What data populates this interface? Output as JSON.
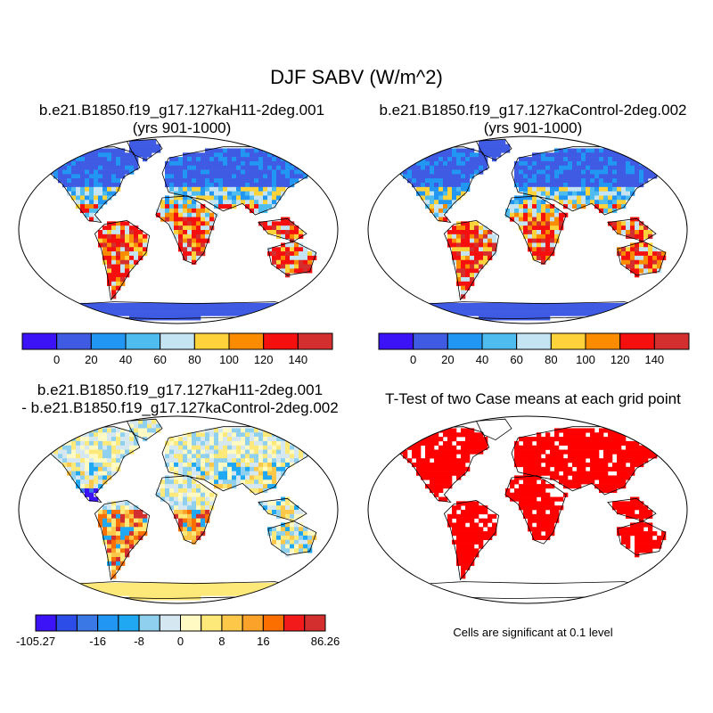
{
  "title": "DJF SABV (W/m^2)",
  "panels": [
    {
      "title_line1": "b.e21.B1850.f19_g17.127kaH11-2deg.001",
      "title_line2": "(yrs 901-1000)",
      "kind": "field"
    },
    {
      "title_line1": "b.e21.B1850.f19_g17.127kaControl-2deg.002",
      "title_line2": "(yrs 901-1000)",
      "kind": "field"
    },
    {
      "title_line1": "b.e21.B1850.f19_g17.127kaH11-2deg.001",
      "title_line2": "- b.e21.B1850.f19_g17.127kaControl-2deg.002",
      "kind": "difference"
    },
    {
      "title_line1": "T-Test of two Case means at each grid point",
      "title_line2": "",
      "kind": "ttest"
    }
  ],
  "colorbar_field": {
    "colors": [
      "#3b13f6",
      "#3f5be3",
      "#2196f3",
      "#4fbcf0",
      "#c4e4f3",
      "#fdd23a",
      "#fb8c00",
      "#f50f0f",
      "#d32f2f"
    ],
    "labels": [
      "0",
      "20",
      "40",
      "60",
      "80",
      "100",
      "120",
      "140"
    ]
  },
  "colorbar_diff": {
    "colors": [
      "#3b13f6",
      "#2c4de8",
      "#3a78e6",
      "#2196f3",
      "#21a8f3",
      "#8fd0ee",
      "#d5e8f1",
      "#fff9c4",
      "#fde87a",
      "#fdc74a",
      "#fba22b",
      "#fb6e00",
      "#f21a1a",
      "#d32f2f"
    ],
    "labels": [
      "-105.27",
      "-16",
      "-8",
      "0",
      "8",
      "16",
      "86.26"
    ],
    "label_boundaries": [
      0,
      3,
      5,
      7,
      9,
      11,
      14
    ]
  },
  "map_colors": {
    "ocean": "#ffffff",
    "field_cold": "#3f5be3",
    "field_mid": "#4fbcf0",
    "field_hot": "#e8161a",
    "field_warm": "#fdd23a",
    "diff_neutral": "#fff4a8",
    "diff_neg": "#8fd0ee",
    "diff_strong_neg": "#3b13f6",
    "diff_pos": "#fba22b",
    "ttest_sig": "#ff0000"
  },
  "footnote": "Cells are significant at 0.1 level"
}
